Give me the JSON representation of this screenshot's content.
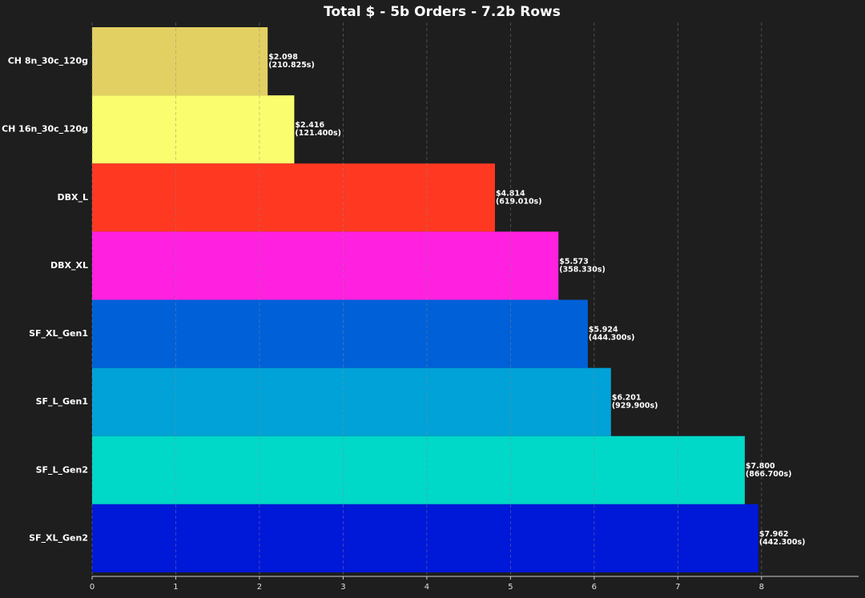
{
  "chart_data": {
    "type": "barh",
    "title": "Total $ - 5b Orders - 7.2b Rows",
    "categories": [
      "CH 8n_30c_120g",
      "CH 16n_30c_120g",
      "DBX_L",
      "DBX_XL",
      "SF_XL_Gen1",
      "SF_L_Gen1",
      "SF_L_Gen2",
      "SF_XL_Gen2"
    ],
    "values": [
      2.098,
      2.416,
      4.814,
      5.573,
      5.924,
      6.201,
      7.8,
      7.962
    ],
    "value_labels": [
      "$2.098",
      "$2.416",
      "$4.814",
      "$5.573",
      "$5.924",
      "$6.201",
      "$7.800",
      "$7.962"
    ],
    "time_labels": [
      "(210.825s)",
      "(121.400s)",
      "(619.010s)",
      "(358.330s)",
      "(444.300s)",
      "(929.900s)",
      "(866.700s)",
      "(442.300s)"
    ],
    "colors": [
      "#e2d063",
      "#fafd6e",
      "#ff3822",
      "#ff20e0",
      "#0060d8",
      "#00a2d8",
      "#00d8c8",
      "#0018d8"
    ],
    "xlim": [
      0,
      9.16
    ],
    "xticks": [
      0,
      1,
      2,
      3,
      4,
      5,
      6,
      7,
      8
    ],
    "grid": true
  }
}
